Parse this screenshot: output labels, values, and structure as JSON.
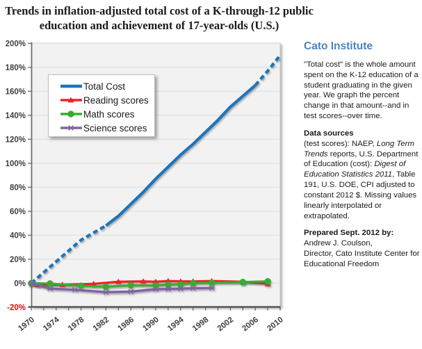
{
  "title": {
    "line1": "Trends in inflation-adjusted total cost of a K-through-12 public",
    "line2": "education and achievement of 17-year-olds  (U.S.)"
  },
  "style": {
    "plot_bg": "#F2F2F2",
    "plot_border": "#C3C3C3",
    "grid_color": "#DCDCDC",
    "axis_color": "#595959",
    "tick_label_color": "#3F3F3F",
    "negative_tick_color": "#FF0000",
    "cato_blue": "#4D83C0"
  },
  "chart_data": {
    "type": "line",
    "title": "Trends in inflation-adjusted total cost of a K-through-12 public education and achievement of 17-year-olds (U.S.)",
    "xlabel": "",
    "ylabel": "percent change",
    "grid": true,
    "legend_position": "upper-left-inside",
    "x_axis": {
      "min": 1970,
      "max": 2010,
      "minor_tick_step": 2,
      "tick_labels": [
        "1970",
        "1974",
        "1978",
        "1982",
        "1986",
        "1990",
        "1994",
        "1998",
        "2002",
        "2006",
        "2010"
      ]
    },
    "y_axis": {
      "min": -20,
      "max": 200,
      "unit": "%",
      "ticks": [
        {
          "v": 200,
          "label": "200%"
        },
        {
          "v": 180,
          "label": "180%"
        },
        {
          "v": 160,
          "label": "160%"
        },
        {
          "v": 140,
          "label": "140%"
        },
        {
          "v": 120,
          "label": "120%"
        },
        {
          "v": 100,
          "label": "100%"
        },
        {
          "v": 80,
          "label": "80%"
        },
        {
          "v": 60,
          "label": "60%"
        },
        {
          "v": 40,
          "label": "40%"
        },
        {
          "v": 20,
          "label": "20%"
        },
        {
          "v": 0,
          "label": "0%"
        },
        {
          "v": -20,
          "label": "-20%",
          "negative": true
        }
      ]
    },
    "series": [
      {
        "name": "Total Cost",
        "color": "#1B75BC",
        "width": 4.2,
        "marker": null,
        "x": [
          1970,
          1972,
          1974,
          1976,
          1978,
          1980,
          1982,
          1984,
          1986,
          1988,
          1990,
          1992,
          1994,
          1996,
          1998,
          2000,
          2002,
          2004,
          2006,
          2008,
          2010
        ],
        "y": [
          0,
          9,
          18,
          27,
          36,
          42,
          48,
          56,
          66,
          76,
          87,
          97,
          107,
          116,
          126,
          136,
          147,
          156,
          165,
          177,
          190
        ],
        "segments": [
          {
            "from": 1970,
            "to": 1982,
            "dashed": true
          },
          {
            "from": 1982,
            "to": 2006,
            "dashed": false
          },
          {
            "from": 2006,
            "to": 2010,
            "dashed": true
          }
        ],
        "note": "dashed = linearly interpolated or extrapolated values"
      },
      {
        "name": "Reading scores",
        "color": "#EC2227",
        "width": 3.2,
        "marker": "triangle",
        "x": [
          1970,
          1971,
          1975,
          1980,
          1984,
          1988,
          1990,
          1992,
          1994,
          1996,
          1999,
          2004,
          2008
        ],
        "y": [
          0,
          -1.5,
          -1.2,
          -0.6,
          1.2,
          1.5,
          1.2,
          1.8,
          1.5,
          1.5,
          1.8,
          1.2,
          -0.5
        ]
      },
      {
        "name": "Math scores",
        "color": "#3BAA35",
        "width": 3.2,
        "marker": "circle",
        "x": [
          1970,
          1973,
          1978,
          1982,
          1986,
          1990,
          1992,
          1994,
          1996,
          1999,
          2004,
          2008
        ],
        "y": [
          0,
          -0.3,
          -2.2,
          -3,
          -1.8,
          -2,
          -1.2,
          -1,
          0,
          0.3,
          0.9,
          1.5
        ]
      },
      {
        "name": "Science scores",
        "color": "#8064A2",
        "width": 3.4,
        "marker": "asterisk",
        "x": [
          1970,
          1973,
          1977,
          1982,
          1986,
          1990,
          1992,
          1994,
          1996,
          1999
        ],
        "y": [
          0,
          -4.5,
          -5.5,
          -7.5,
          -7,
          -5,
          -4.8,
          -4.6,
          -4.2,
          -4
        ]
      }
    ]
  },
  "sidebar": {
    "heading": "Cato Institute",
    "intro": "\"Total cost\" is the whole amount spent on the K-12 education of a student graduating in the given year. We graph the percent change in that amount--and in test scores--over time.",
    "sources_heading": "Data sources",
    "sources": {
      "p1": "(test scores): NAEP, ",
      "p2": "Long Term Trends",
      "p3": " reports, U.S. Department of Education (cost): ",
      "p4": "Digest of Education Statistics 2011",
      "p5": ", Table 191, U.S. DOE, CPI adjusted to constant 2012 $.  Missing values linearly interpolated or extrapolated."
    },
    "prepared_heading": "Prepared Sept. 2012 by:",
    "prepared_line1": "Andrew J. Coulson,",
    "prepared_line2": "Director, Cato Institute Center for Educational Freedom"
  }
}
